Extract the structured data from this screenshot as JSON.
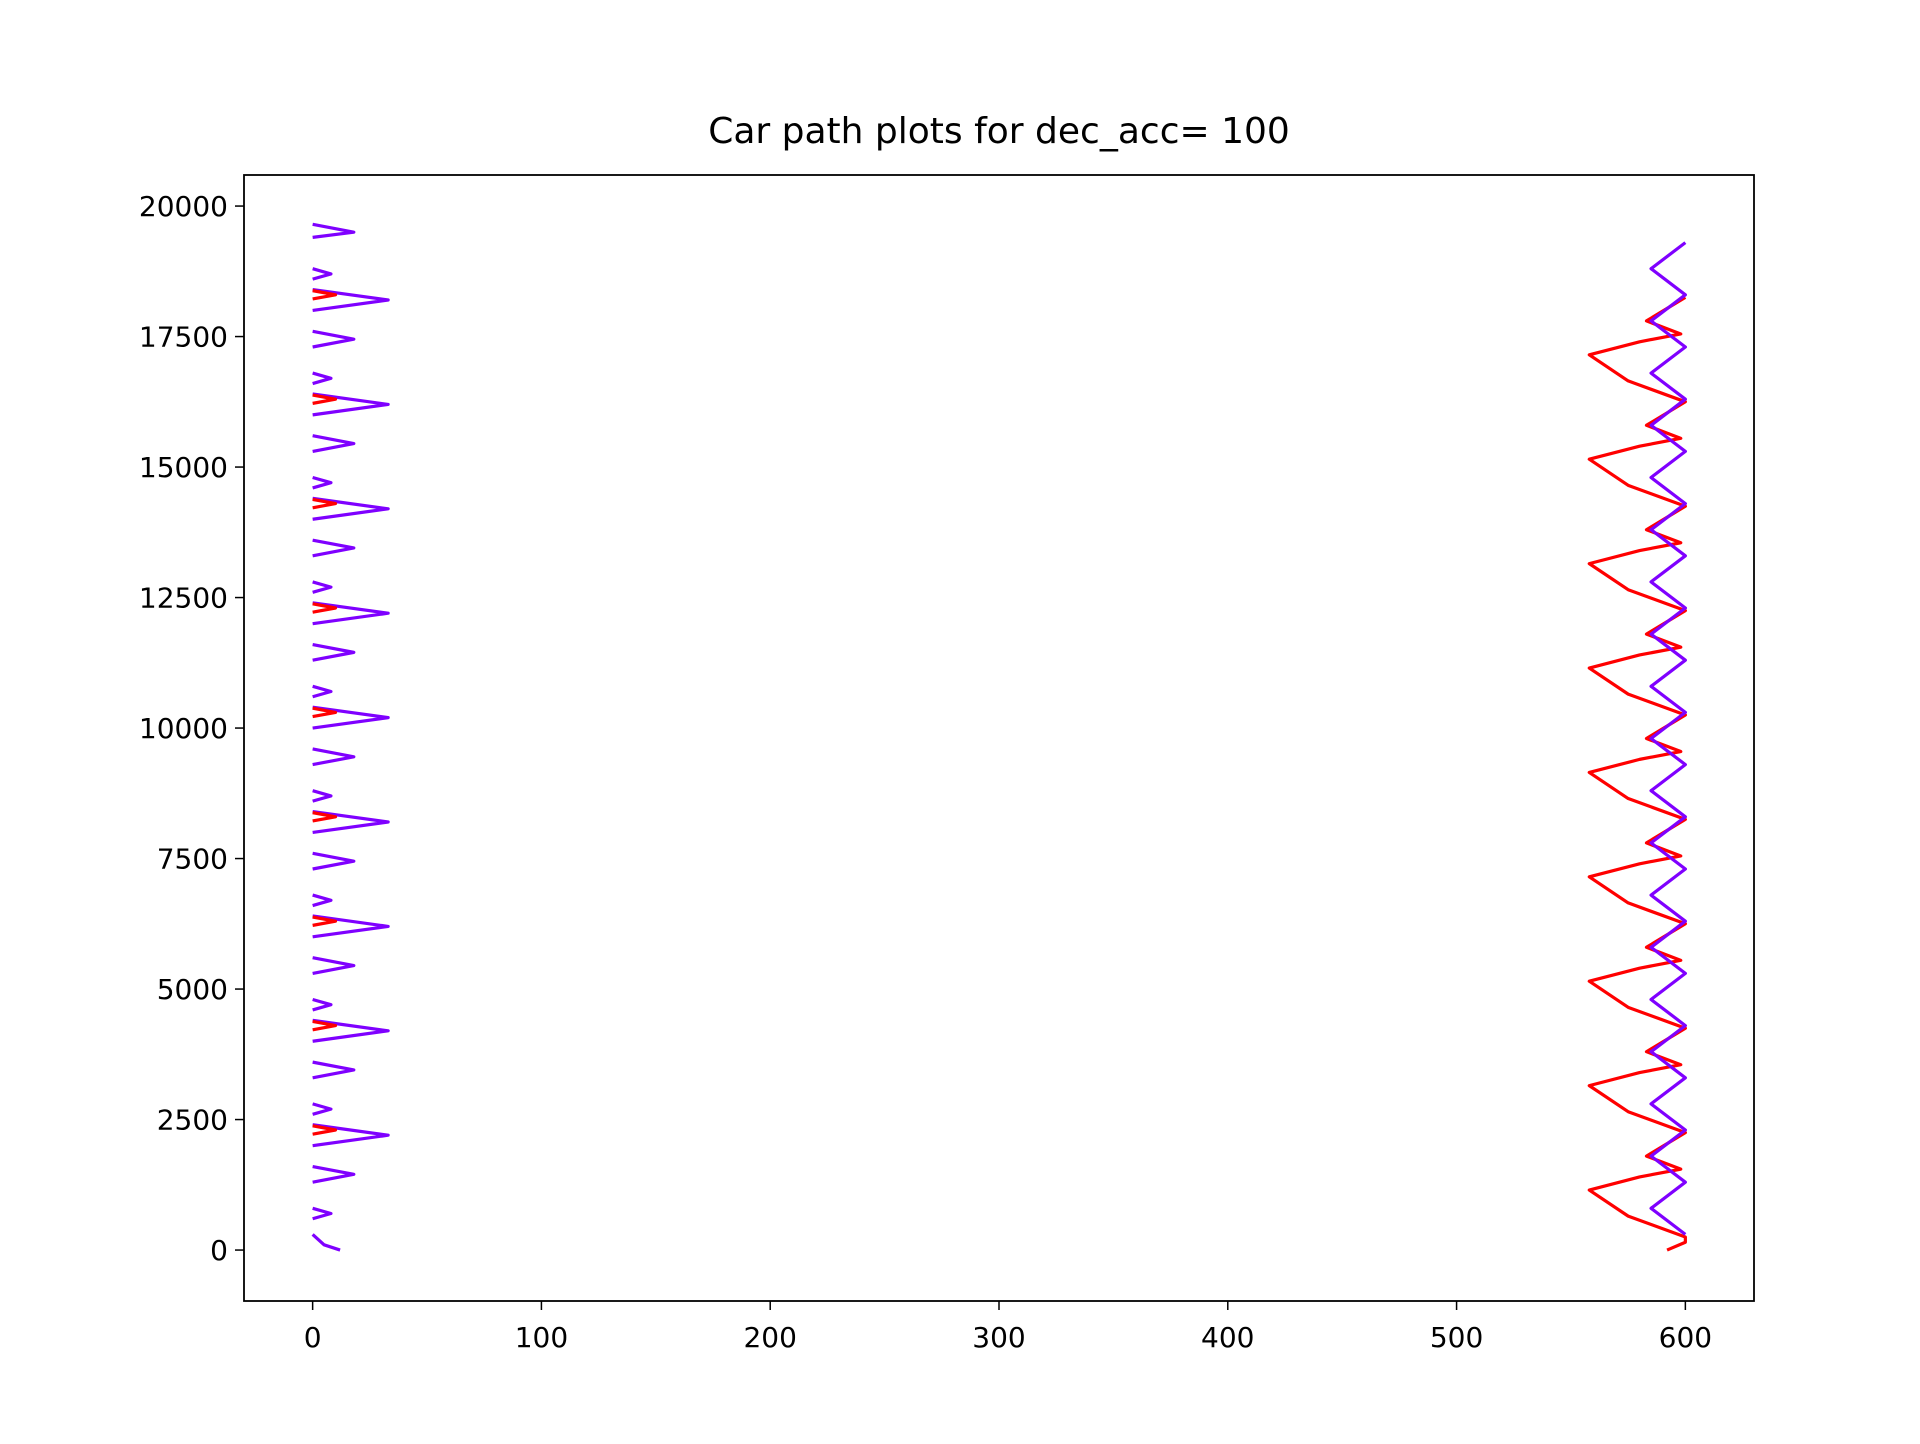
{
  "chart_data": {
    "type": "line",
    "title": "Car path plots for dec_acc= 100",
    "xlim": [
      -30,
      630
    ],
    "xticks": [
      0,
      100,
      200,
      300,
      400,
      500,
      600
    ],
    "ylim": [
      -976,
      20595
    ],
    "yticks": [
      0,
      2500,
      5000,
      7500,
      10000,
      12500,
      15000,
      17500,
      20000
    ],
    "grid": false,
    "series": [
      {
        "color": "#7f00ff",
        "x": [
          12,
          5,
          0,
          null,
          0,
          8,
          0,
          null,
          0,
          18,
          0,
          null,
          0,
          33,
          0,
          null,
          0,
          8,
          0,
          null,
          0,
          18,
          0,
          null,
          0,
          33,
          0,
          null,
          0,
          8,
          0,
          null,
          0,
          18,
          0,
          null,
          0,
          33,
          0,
          null,
          0,
          8,
          0,
          null,
          0,
          18,
          0,
          null,
          0,
          33,
          0,
          null,
          0,
          8,
          0,
          null,
          0,
          18,
          0,
          null,
          0,
          33,
          0,
          null,
          0,
          8,
          0,
          null,
          0,
          18,
          0,
          null,
          0,
          33,
          0,
          null,
          0,
          8,
          0,
          null,
          0,
          18,
          0,
          null,
          0,
          33,
          0,
          null,
          0,
          8,
          0,
          null,
          0,
          18,
          0,
          null,
          0,
          33,
          0,
          null,
          0,
          8,
          0,
          null,
          0,
          18,
          0,
          null,
          0,
          33,
          0,
          null,
          0,
          8,
          0,
          null,
          0,
          18,
          0
        ],
        "values": [
          0,
          100,
          300,
          null,
          800,
          700,
          600,
          null,
          1600,
          1450,
          1300,
          null,
          2400,
          2200,
          2000,
          null,
          2800,
          2700,
          2600,
          null,
          3600,
          3450,
          3300,
          null,
          4400,
          4200,
          4000,
          null,
          4800,
          4700,
          4600,
          null,
          5600,
          5450,
          5300,
          null,
          6400,
          6200,
          6000,
          null,
          6800,
          6700,
          6600,
          null,
          7600,
          7450,
          7300,
          null,
          8400,
          8200,
          8000,
          null,
          8800,
          8700,
          8600,
          null,
          9600,
          9450,
          9300,
          null,
          10400,
          10200,
          10000,
          null,
          10800,
          10700,
          10600,
          null,
          11600,
          11450,
          11300,
          null,
          12400,
          12200,
          12000,
          null,
          12800,
          12700,
          12600,
          null,
          13600,
          13450,
          13300,
          null,
          14400,
          14200,
          14000,
          null,
          14800,
          14700,
          14600,
          null,
          15600,
          15450,
          15300,
          null,
          16400,
          16200,
          16000,
          null,
          16800,
          16700,
          16600,
          null,
          17600,
          17450,
          17300,
          null,
          18400,
          18200,
          18000,
          null,
          18800,
          18700,
          18600,
          null,
          19650,
          19500,
          19400
        ]
      },
      {
        "color": "#ff0000",
        "x": [
          0,
          10,
          0,
          null,
          0,
          10,
          0,
          null,
          0,
          10,
          0,
          null,
          0,
          10,
          0,
          null,
          0,
          10,
          0,
          null,
          0,
          10,
          0,
          null,
          0,
          10,
          0,
          null,
          0,
          10,
          0,
          null,
          0,
          10,
          0
        ],
        "values": [
          2380,
          2300,
          2220,
          null,
          4380,
          4300,
          4220,
          null,
          6380,
          6300,
          6220,
          null,
          8380,
          8300,
          8220,
          null,
          10380,
          10300,
          10220,
          null,
          12380,
          12300,
          12220,
          null,
          14380,
          14300,
          14220,
          null,
          16380,
          16300,
          16220,
          null,
          18380,
          18300,
          18220
        ]
      },
      {
        "color": "#ff0000",
        "x": [
          592,
          600,
          600,
          575,
          558,
          580,
          598,
          583,
          600,
          575,
          558,
          580,
          598,
          583,
          600,
          575,
          558,
          580,
          598,
          583,
          600,
          575,
          558,
          580,
          598,
          583,
          600,
          575,
          558,
          580,
          598,
          583,
          600,
          575,
          558,
          580,
          598,
          583,
          600,
          575,
          558,
          580,
          598,
          583,
          600,
          575,
          558,
          580,
          598,
          583,
          600,
          575,
          558,
          580,
          598,
          583,
          600
        ],
        "values": [
          0,
          150,
          250,
          650,
          1150,
          1400,
          1550,
          1800,
          2250,
          2650,
          3150,
          3400,
          3550,
          3800,
          4250,
          4650,
          5150,
          5400,
          5550,
          5800,
          6250,
          6650,
          7150,
          7400,
          7550,
          7800,
          8250,
          8650,
          9150,
          9400,
          9550,
          9800,
          10250,
          10650,
          11150,
          11400,
          11550,
          11800,
          12250,
          12650,
          13150,
          13400,
          13550,
          13800,
          14250,
          14650,
          15150,
          15400,
          15550,
          15800,
          16250,
          16650,
          17150,
          17400,
          17550,
          17800,
          18250
        ]
      },
      {
        "color": "#7f00ff",
        "x": [
          600,
          585,
          600,
          585,
          600,
          585,
          600,
          585,
          600,
          585,
          600,
          585,
          600,
          585,
          600,
          585,
          600,
          585,
          600,
          585,
          600,
          585,
          600,
          585,
          600,
          585,
          600,
          585,
          600,
          585,
          600,
          585,
          600,
          585,
          600,
          585,
          600,
          585,
          600
        ],
        "values": [
          300,
          800,
          1300,
          1800,
          2300,
          2800,
          3300,
          3800,
          4300,
          4800,
          5300,
          5800,
          6300,
          6800,
          7300,
          7800,
          8300,
          8800,
          9300,
          9800,
          10300,
          10800,
          11300,
          11800,
          12300,
          12800,
          13300,
          13800,
          14300,
          14800,
          15300,
          15800,
          16300,
          16800,
          17300,
          17800,
          18300,
          18800,
          19300
        ]
      }
    ]
  }
}
